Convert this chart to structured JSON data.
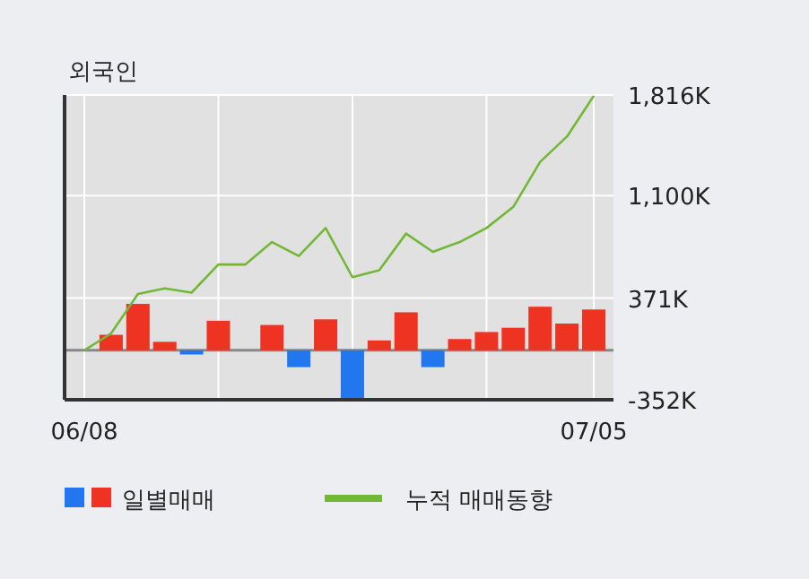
{
  "chart_data": {
    "type": "bar",
    "title": "외국인",
    "categories": [
      "06/08",
      null,
      null,
      null,
      null,
      null,
      null,
      null,
      null,
      null,
      null,
      null,
      null,
      null,
      null,
      null,
      null,
      null,
      null,
      "07/05"
    ],
    "ylim": [
      -352,
      1816
    ],
    "yticks": [
      {
        "value": -352,
        "label": "-352K"
      },
      {
        "value": 371,
        "label": "371K"
      },
      {
        "value": 1100,
        "label": "1,100K"
      },
      {
        "value": 1816,
        "label": "1,816K"
      }
    ],
    "grid": true,
    "legend": "bottom",
    "series": [
      {
        "name": "일별매매",
        "colors": [
          "#ee3322",
          "#ee3322",
          "#ee3322",
          "#ee3322",
          "#2277ee",
          "#ee3322",
          "#ee3322",
          "#ee3322",
          "#2277ee",
          "#ee3322",
          "#2277ee",
          "#ee3322",
          "#ee3322",
          "#2277ee",
          "#ee3322",
          "#ee3322",
          "#ee3322",
          "#ee3322",
          "#ee3322",
          "#ee3322"
        ],
        "values": [
          0,
          110,
          330,
          60,
          -30,
          210,
          0,
          180,
          -120,
          220,
          -340,
          70,
          270,
          -120,
          80,
          130,
          160,
          310,
          190,
          290
        ]
      },
      {
        "name": "누적 매매동향",
        "type": "line",
        "color": "#72b836",
        "values": [
          0,
          120,
          400,
          440,
          410,
          610,
          610,
          770,
          670,
          870,
          520,
          570,
          830,
          700,
          770,
          870,
          1020,
          1340,
          1520,
          1810
        ]
      }
    ]
  }
}
